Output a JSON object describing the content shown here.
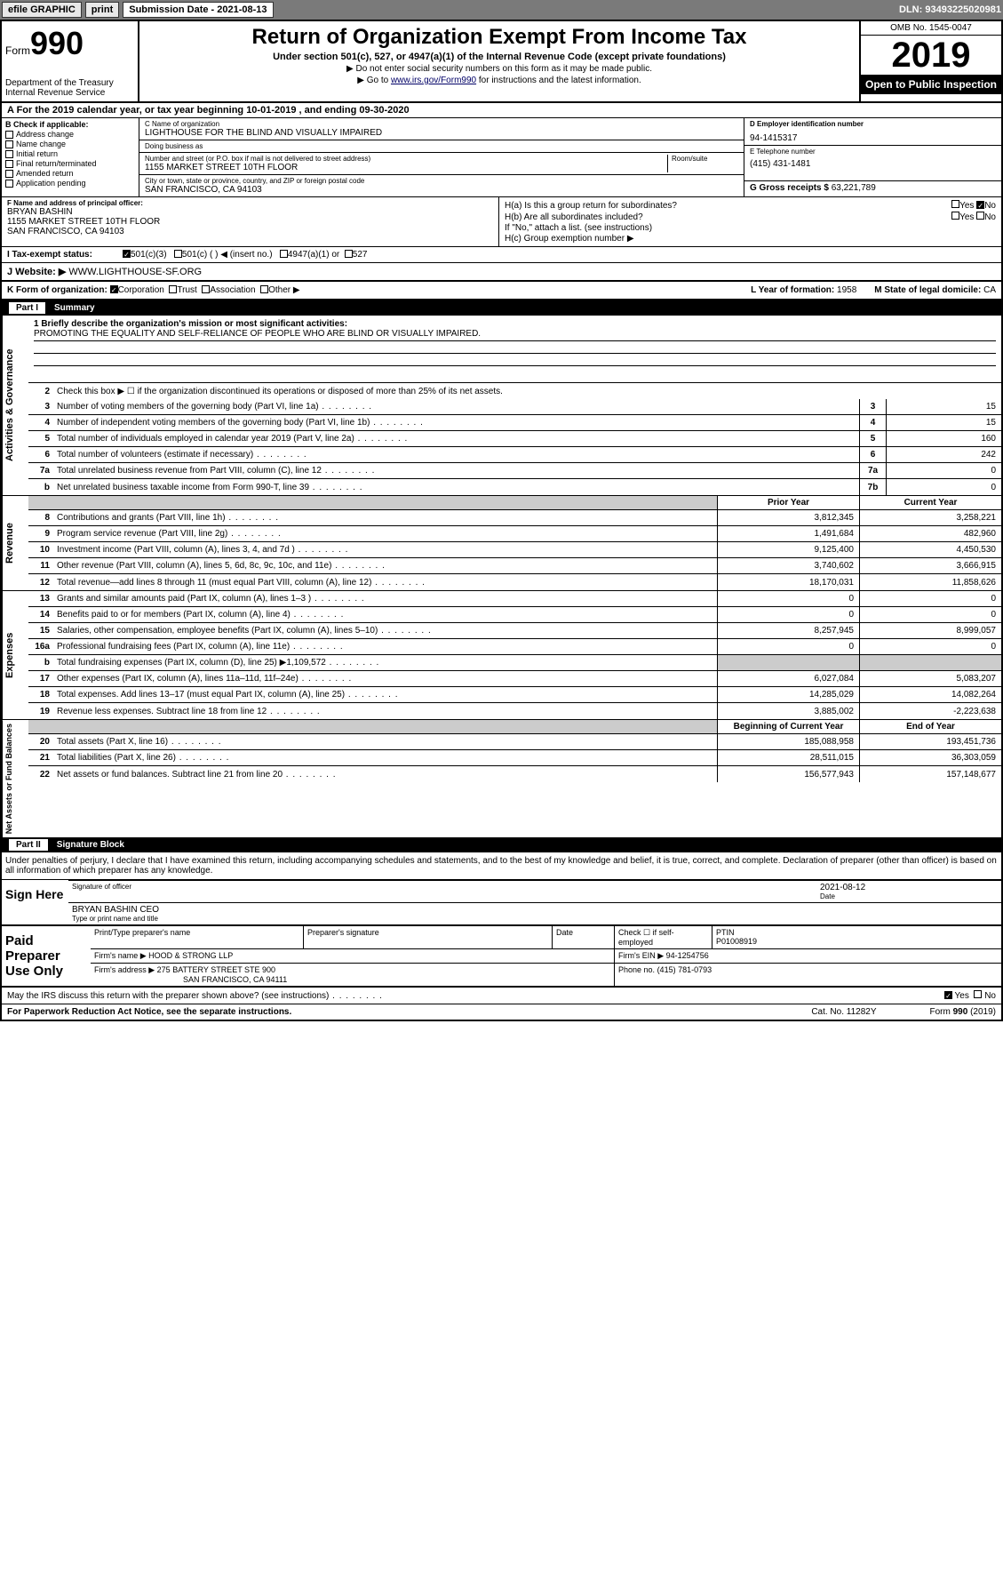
{
  "topbar": {
    "efile": "efile GRAPHIC",
    "print": "print",
    "sub_label": "Submission Date - 2021-08-13",
    "dln": "DLN: 93493225020981"
  },
  "header": {
    "form_prefix": "Form",
    "form_num": "990",
    "dept": "Department of the Treasury",
    "irs": "Internal Revenue Service",
    "title": "Return of Organization Exempt From Income Tax",
    "subtitle": "Under section 501(c), 527, or 4947(a)(1) of the Internal Revenue Code (except private foundations)",
    "note1": "▶ Do not enter social security numbers on this form as it may be made public.",
    "note2_pre": "▶ Go to ",
    "note2_link": "www.irs.gov/Form990",
    "note2_post": " for instructions and the latest information.",
    "omb": "OMB No. 1545-0047",
    "year": "2019",
    "open": "Open to Public Inspection"
  },
  "period": "A For the 2019 calendar year, or tax year beginning 10-01-2019    , and ending 09-30-2020",
  "box_b": {
    "label": "B Check if applicable:",
    "items": [
      "Address change",
      "Name change",
      "Initial return",
      "Final return/terminated",
      "Amended return",
      "Application pending"
    ]
  },
  "box_c": {
    "name_label": "C Name of organization",
    "name": "LIGHTHOUSE FOR THE BLIND AND VISUALLY IMPAIRED",
    "dba_label": "Doing business as",
    "addr_label": "Number and street (or P.O. box if mail is not delivered to street address)",
    "room_label": "Room/suite",
    "addr": "1155 MARKET STREET 10TH FLOOR",
    "city_label": "City or town, state or province, country, and ZIP or foreign postal code",
    "city": "SAN FRANCISCO, CA  94103"
  },
  "box_d": {
    "label": "D Employer identification number",
    "val": "94-1415317"
  },
  "box_e": {
    "label": "E Telephone number",
    "val": "(415) 431-1481"
  },
  "box_g": {
    "label": "G Gross receipts $",
    "val": "63,221,789"
  },
  "box_f": {
    "label": "F Name and address of principal officer:",
    "name": "BRYAN BASHIN",
    "addr1": "1155 MARKET STREET 10TH FLOOR",
    "addr2": "SAN FRANCISCO, CA  94103"
  },
  "box_h": {
    "ha": "H(a)  Is this a group return for subordinates?",
    "hb": "H(b)  Are all subordinates included?",
    "hb_note": "If \"No,\" attach a list. (see instructions)",
    "hc": "H(c)  Group exemption number ▶",
    "yes": "Yes",
    "no": "No"
  },
  "tax_status": {
    "label": "I  Tax-exempt status:",
    "c3": "501(c)(3)",
    "c": "501(c) (   ) ◀ (insert no.)",
    "a1": "4947(a)(1) or",
    "s527": "527"
  },
  "website": {
    "label": "J  Website: ▶",
    "val": "WWW.LIGHTHOUSE-SF.ORG"
  },
  "box_k": {
    "label": "K Form of organization:",
    "corp": "Corporation",
    "trust": "Trust",
    "assoc": "Association",
    "other": "Other ▶"
  },
  "box_l": {
    "label": "L Year of formation:",
    "val": "1958"
  },
  "box_m": {
    "label": "M State of legal domicile:",
    "val": "CA"
  },
  "part1": {
    "label": "Part I",
    "title": "Summary"
  },
  "summary": {
    "l1_label": "1  Briefly describe the organization's mission or most significant activities:",
    "l1_val": "PROMOTING THE EQUALITY AND SELF-RELIANCE OF PEOPLE WHO ARE BLIND OR VISUALLY IMPAIRED.",
    "l2": "Check this box ▶ ☐  if the organization discontinued its operations or disposed of more than 25% of its net assets.",
    "lines_gov": [
      {
        "n": "3",
        "t": "Number of voting members of the governing body (Part VI, line 1a)",
        "b": "3",
        "v": "15"
      },
      {
        "n": "4",
        "t": "Number of independent voting members of the governing body (Part VI, line 1b)",
        "b": "4",
        "v": "15"
      },
      {
        "n": "5",
        "t": "Total number of individuals employed in calendar year 2019 (Part V, line 2a)",
        "b": "5",
        "v": "160"
      },
      {
        "n": "6",
        "t": "Total number of volunteers (estimate if necessary)",
        "b": "6",
        "v": "242"
      },
      {
        "n": "7a",
        "t": "Total unrelated business revenue from Part VIII, column (C), line 12",
        "b": "7a",
        "v": "0"
      },
      {
        "n": "b",
        "t": "Net unrelated business taxable income from Form 990-T, line 39",
        "b": "7b",
        "v": "0"
      }
    ],
    "col_prior": "Prior Year",
    "col_curr": "Current Year",
    "revenue": [
      {
        "n": "8",
        "t": "Contributions and grants (Part VIII, line 1h)",
        "p": "3,812,345",
        "c": "3,258,221"
      },
      {
        "n": "9",
        "t": "Program service revenue (Part VIII, line 2g)",
        "p": "1,491,684",
        "c": "482,960"
      },
      {
        "n": "10",
        "t": "Investment income (Part VIII, column (A), lines 3, 4, and 7d )",
        "p": "9,125,400",
        "c": "4,450,530"
      },
      {
        "n": "11",
        "t": "Other revenue (Part VIII, column (A), lines 5, 6d, 8c, 9c, 10c, and 11e)",
        "p": "3,740,602",
        "c": "3,666,915"
      },
      {
        "n": "12",
        "t": "Total revenue—add lines 8 through 11 (must equal Part VIII, column (A), line 12)",
        "p": "18,170,031",
        "c": "11,858,626"
      }
    ],
    "expenses": [
      {
        "n": "13",
        "t": "Grants and similar amounts paid (Part IX, column (A), lines 1–3 )",
        "p": "0",
        "c": "0"
      },
      {
        "n": "14",
        "t": "Benefits paid to or for members (Part IX, column (A), line 4)",
        "p": "0",
        "c": "0"
      },
      {
        "n": "15",
        "t": "Salaries, other compensation, employee benefits (Part IX, column (A), lines 5–10)",
        "p": "8,257,945",
        "c": "8,999,057"
      },
      {
        "n": "16a",
        "t": "Professional fundraising fees (Part IX, column (A), line 11e)",
        "p": "0",
        "c": "0"
      },
      {
        "n": "b",
        "t": "Total fundraising expenses (Part IX, column (D), line 25) ▶1,109,572",
        "p": "",
        "c": "",
        "shaded": true
      },
      {
        "n": "17",
        "t": "Other expenses (Part IX, column (A), lines 11a–11d, 11f–24e)",
        "p": "6,027,084",
        "c": "5,083,207"
      },
      {
        "n": "18",
        "t": "Total expenses. Add lines 13–17 (must equal Part IX, column (A), line 25)",
        "p": "14,285,029",
        "c": "14,082,264"
      },
      {
        "n": "19",
        "t": "Revenue less expenses. Subtract line 18 from line 12",
        "p": "3,885,002",
        "c": "-2,223,638"
      }
    ],
    "col_begin": "Beginning of Current Year",
    "col_end": "End of Year",
    "netassets": [
      {
        "n": "20",
        "t": "Total assets (Part X, line 16)",
        "p": "185,088,958",
        "c": "193,451,736"
      },
      {
        "n": "21",
        "t": "Total liabilities (Part X, line 26)",
        "p": "28,511,015",
        "c": "36,303,059"
      },
      {
        "n": "22",
        "t": "Net assets or fund balances. Subtract line 21 from line 20",
        "p": "156,577,943",
        "c": "157,148,677"
      }
    ]
  },
  "side_labels": {
    "gov": "Activities & Governance",
    "rev": "Revenue",
    "exp": "Expenses",
    "net": "Net Assets or Fund Balances"
  },
  "part2": {
    "label": "Part II",
    "title": "Signature Block"
  },
  "perjury": "Under penalties of perjury, I declare that I have examined this return, including accompanying schedules and statements, and to the best of my knowledge and belief, it is true, correct, and complete. Declaration of preparer (other than officer) is based on all information of which preparer has any knowledge.",
  "sign": {
    "here": "Sign Here",
    "sig_label": "Signature of officer",
    "date": "2021-08-12",
    "date_label": "Date",
    "name": "BRYAN BASHIN CEO",
    "name_label": "Type or print name and title"
  },
  "preparer": {
    "label": "Paid Preparer Use Only",
    "h_name": "Print/Type preparer's name",
    "h_sig": "Preparer's signature",
    "h_date": "Date",
    "h_check": "Check ☐ if self-employed",
    "h_ptin": "PTIN",
    "ptin": "P01008919",
    "firm_label": "Firm's name    ▶",
    "firm": "HOOD & STRONG LLP",
    "ein_label": "Firm's EIN ▶",
    "ein": "94-1254756",
    "addr_label": "Firm's address ▶",
    "addr1": "275 BATTERY STREET STE 900",
    "addr2": "SAN FRANCISCO, CA  94111",
    "phone_label": "Phone no.",
    "phone": "(415) 781-0793"
  },
  "footer": {
    "discuss": "May the IRS discuss this return with the preparer shown above? (see instructions)",
    "yes": "Yes",
    "no": "No",
    "paperwork": "For Paperwork Reduction Act Notice, see the separate instructions.",
    "cat": "Cat. No. 11282Y",
    "form": "Form 990 (2019)"
  }
}
